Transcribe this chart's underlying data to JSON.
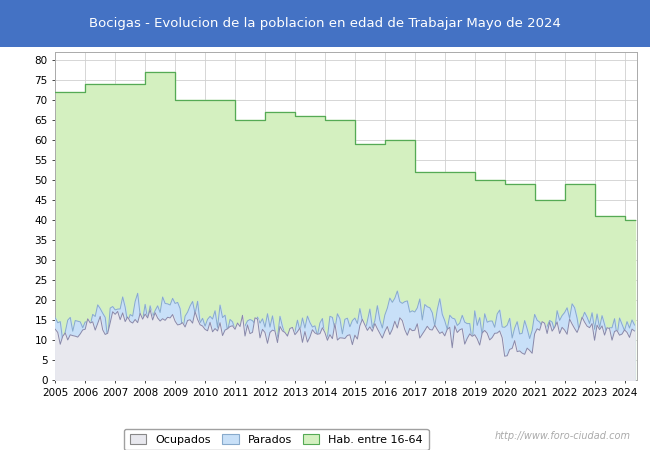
{
  "title": "Bocigas - Evolucion de la poblacion en edad de Trabajar Mayo de 2024",
  "title_bg_color": "#4472c4",
  "title_text_color": "#ffffff",
  "ylim": [
    0,
    82
  ],
  "yticks": [
    0,
    5,
    10,
    15,
    20,
    25,
    30,
    35,
    40,
    45,
    50,
    55,
    60,
    65,
    70,
    75,
    80
  ],
  "watermark": "http://www.foro-ciudad.com",
  "grid_color": "#d0d0d0",
  "plot_bg_color": "#ffffff",
  "hab_fill_color": "#d4f0c0",
  "hab_line_color": "#55aa55",
  "ocup_fill_color": "#e8e8ee",
  "ocup_line_color": "#8888aa",
  "par_fill_color": "#c8e0f8",
  "par_line_color": "#88aacc",
  "hab_annual": {
    "2005": 72,
    "2006": 74,
    "2007": 74,
    "2008": 77,
    "2009": 70,
    "2010": 70,
    "2011": 65,
    "2012": 67,
    "2013": 66,
    "2014": 65,
    "2015": 59,
    "2016": 60,
    "2017": 52,
    "2018": 52,
    "2019": 50,
    "2020": 49,
    "2021": 45,
    "2022": 49,
    "2023": 41,
    "2024": 40
  },
  "ocup_base": {
    "2005": 11,
    "2006": 14,
    "2007": 15,
    "2008": 16,
    "2009": 14,
    "2010": 13,
    "2011": 13,
    "2012": 12,
    "2013": 12,
    "2014": 11,
    "2015": 12,
    "2016": 13,
    "2017": 12,
    "2018": 12,
    "2019": 11,
    "2020": 7,
    "2021": 13,
    "2022": 14,
    "2023": 12,
    "2024": 12
  },
  "par_base": {
    "2005": 14,
    "2006": 16,
    "2007": 18,
    "2008": 18,
    "2009": 17,
    "2010": 15,
    "2011": 14,
    "2012": 14,
    "2013": 14,
    "2014": 14,
    "2015": 15,
    "2016": 19,
    "2017": 17,
    "2018": 14,
    "2019": 14,
    "2020": 13,
    "2021": 15,
    "2022": 16,
    "2023": 14,
    "2024": 14
  }
}
